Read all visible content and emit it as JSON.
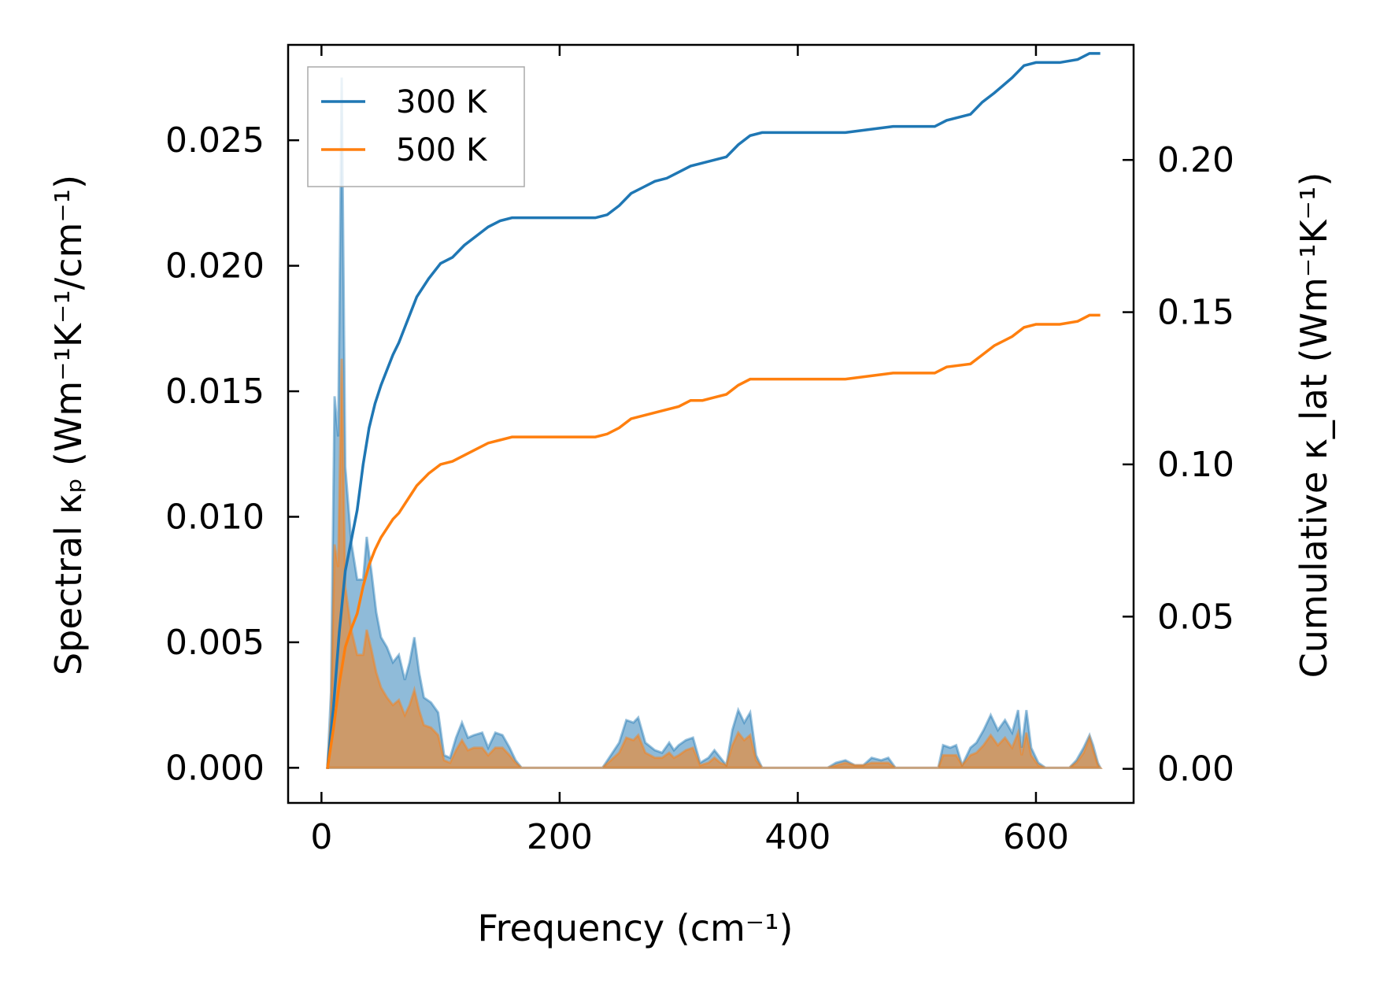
{
  "chart_data": {
    "type": "area",
    "xlabel": "Frequency (cm⁻¹)",
    "ylabel_left": "Spectral κₚ (Wm⁻¹K⁻¹/cm⁻¹)",
    "ylabel_right": "Cumulative κ_lat (Wm⁻¹K⁻¹)",
    "xlim": [
      -28,
      682
    ],
    "ylim_left": [
      -0.0014,
      0.0288
    ],
    "ylim_right": [
      -0.0112,
      0.2378
    ],
    "xticks": [
      0,
      200,
      400,
      600
    ],
    "yticks_left": [
      0.0,
      0.005,
      0.01,
      0.015,
      0.02,
      0.025
    ],
    "yticks_left_labels": [
      "0.000",
      "0.005",
      "0.010",
      "0.015",
      "0.020",
      "0.025"
    ],
    "yticks_right": [
      0.0,
      0.05,
      0.1,
      0.15,
      0.2
    ],
    "yticks_right_labels": [
      "0.00",
      "0.05",
      "0.10",
      "0.15",
      "0.20"
    ],
    "legend_position": "top-left",
    "grid": false,
    "series": [
      {
        "name": "300 K",
        "color": "#1f77b4",
        "spectral": [
          [
            5,
            0
          ],
          [
            8,
            0.003
          ],
          [
            11,
            0.0148
          ],
          [
            14,
            0.0132
          ],
          [
            17,
            0.0275
          ],
          [
            20,
            0.012
          ],
          [
            25,
            0.009
          ],
          [
            30,
            0.0075
          ],
          [
            35,
            0.0075
          ],
          [
            38,
            0.0092
          ],
          [
            42,
            0.0078
          ],
          [
            46,
            0.0062
          ],
          [
            50,
            0.0052
          ],
          [
            55,
            0.0048
          ],
          [
            60,
            0.0042
          ],
          [
            65,
            0.0045
          ],
          [
            70,
            0.0035
          ],
          [
            74,
            0.0042
          ],
          [
            78,
            0.0052
          ],
          [
            82,
            0.0038
          ],
          [
            86,
            0.0028
          ],
          [
            92,
            0.0026
          ],
          [
            98,
            0.0022
          ],
          [
            103,
            0.0005
          ],
          [
            108,
            0.0004
          ],
          [
            113,
            0.0012
          ],
          [
            118,
            0.0018
          ],
          [
            123,
            0.0012
          ],
          [
            128,
            0.0013
          ],
          [
            135,
            0.0014
          ],
          [
            140,
            0.0008
          ],
          [
            146,
            0.0014
          ],
          [
            152,
            0.0013
          ],
          [
            158,
            0.0008
          ],
          [
            163,
            0.0003
          ],
          [
            168,
            0
          ],
          [
            236,
            0
          ],
          [
            243,
            0.0005
          ],
          [
            250,
            0.001
          ],
          [
            256,
            0.0019
          ],
          [
            262,
            0.0018
          ],
          [
            266,
            0.002
          ],
          [
            272,
            0.001
          ],
          [
            280,
            0.0007
          ],
          [
            286,
            0.0006
          ],
          [
            292,
            0.001
          ],
          [
            296,
            0.0007
          ],
          [
            300,
            0.0009
          ],
          [
            306,
            0.0011
          ],
          [
            312,
            0.0012
          ],
          [
            318,
            0.0002
          ],
          [
            325,
            0.0004
          ],
          [
            330,
            0.0007
          ],
          [
            335,
            0.0004
          ],
          [
            340,
            0.0001
          ],
          [
            345,
            0.0015
          ],
          [
            350,
            0.0023
          ],
          [
            355,
            0.0018
          ],
          [
            360,
            0.0022
          ],
          [
            365,
            0.0005
          ],
          [
            370,
            0
          ],
          [
            425,
            0
          ],
          [
            432,
            0.0002
          ],
          [
            440,
            0.0003
          ],
          [
            448,
            0.0001
          ],
          [
            455,
            0.0001
          ],
          [
            462,
            0.0004
          ],
          [
            470,
            0.0003
          ],
          [
            476,
            0.0004
          ],
          [
            482,
            0
          ],
          [
            518,
            0
          ],
          [
            522,
            0.0009
          ],
          [
            528,
            0.0008
          ],
          [
            533,
            0.0009
          ],
          [
            538,
            0.0001
          ],
          [
            545,
            0.0008
          ],
          [
            550,
            0.001
          ],
          [
            556,
            0.0015
          ],
          [
            562,
            0.0021
          ],
          [
            568,
            0.0015
          ],
          [
            574,
            0.0019
          ],
          [
            580,
            0.0014
          ],
          [
            585,
            0.0023
          ],
          [
            588,
            0.0008
          ],
          [
            592,
            0.0023
          ],
          [
            596,
            0.0008
          ],
          [
            602,
            0.0002
          ],
          [
            608,
            0
          ],
          [
            628,
            0
          ],
          [
            634,
            0.0003
          ],
          [
            640,
            0.0008
          ],
          [
            645,
            0.0013
          ],
          [
            648,
            0.0009
          ],
          [
            652,
            0.0002
          ],
          [
            654,
            0
          ]
        ],
        "cumulative": [
          [
            5,
            0
          ],
          [
            10,
            0.02
          ],
          [
            15,
            0.045
          ],
          [
            20,
            0.065
          ],
          [
            25,
            0.075
          ],
          [
            30,
            0.085
          ],
          [
            35,
            0.1
          ],
          [
            40,
            0.112
          ],
          [
            45,
            0.12
          ],
          [
            50,
            0.126
          ],
          [
            55,
            0.131
          ],
          [
            60,
            0.136
          ],
          [
            65,
            0.14
          ],
          [
            70,
            0.145
          ],
          [
            75,
            0.15
          ],
          [
            80,
            0.155
          ],
          [
            90,
            0.161
          ],
          [
            100,
            0.166
          ],
          [
            110,
            0.168
          ],
          [
            120,
            0.172
          ],
          [
            130,
            0.175
          ],
          [
            140,
            0.178
          ],
          [
            150,
            0.18
          ],
          [
            160,
            0.181
          ],
          [
            200,
            0.181
          ],
          [
            230,
            0.181
          ],
          [
            240,
            0.182
          ],
          [
            250,
            0.185
          ],
          [
            260,
            0.189
          ],
          [
            270,
            0.191
          ],
          [
            280,
            0.193
          ],
          [
            290,
            0.194
          ],
          [
            300,
            0.196
          ],
          [
            310,
            0.198
          ],
          [
            320,
            0.199
          ],
          [
            330,
            0.2
          ],
          [
            340,
            0.201
          ],
          [
            350,
            0.205
          ],
          [
            360,
            0.208
          ],
          [
            370,
            0.209
          ],
          [
            420,
            0.209
          ],
          [
            440,
            0.209
          ],
          [
            460,
            0.21
          ],
          [
            480,
            0.211
          ],
          [
            515,
            0.211
          ],
          [
            525,
            0.213
          ],
          [
            545,
            0.215
          ],
          [
            555,
            0.219
          ],
          [
            565,
            0.222
          ],
          [
            580,
            0.227
          ],
          [
            590,
            0.231
          ],
          [
            600,
            0.232
          ],
          [
            620,
            0.232
          ],
          [
            635,
            0.233
          ],
          [
            645,
            0.235
          ],
          [
            654,
            0.235
          ]
        ]
      },
      {
        "name": "500 K",
        "color": "#ff7f0e",
        "spectral": [
          [
            5,
            0
          ],
          [
            8,
            0.002
          ],
          [
            11,
            0.0089
          ],
          [
            14,
            0.008
          ],
          [
            17,
            0.0163
          ],
          [
            20,
            0.0072
          ],
          [
            25,
            0.0055
          ],
          [
            30,
            0.0045
          ],
          [
            35,
            0.0045
          ],
          [
            38,
            0.0055
          ],
          [
            42,
            0.0047
          ],
          [
            46,
            0.0038
          ],
          [
            50,
            0.0032
          ],
          [
            55,
            0.0028
          ],
          [
            60,
            0.0025
          ],
          [
            65,
            0.0027
          ],
          [
            70,
            0.0021
          ],
          [
            74,
            0.0025
          ],
          [
            78,
            0.0031
          ],
          [
            82,
            0.0023
          ],
          [
            86,
            0.0017
          ],
          [
            92,
            0.0016
          ],
          [
            98,
            0.0013
          ],
          [
            103,
            0.0003
          ],
          [
            108,
            0.0002
          ],
          [
            113,
            0.0007
          ],
          [
            118,
            0.0011
          ],
          [
            123,
            0.0007
          ],
          [
            128,
            0.0008
          ],
          [
            135,
            0.0008
          ],
          [
            140,
            0.0005
          ],
          [
            146,
            0.0008
          ],
          [
            152,
            0.0008
          ],
          [
            158,
            0.0005
          ],
          [
            163,
            0.0002
          ],
          [
            168,
            0
          ],
          [
            236,
            0
          ],
          [
            243,
            0.0003
          ],
          [
            250,
            0.0006
          ],
          [
            256,
            0.0012
          ],
          [
            262,
            0.0011
          ],
          [
            266,
            0.0013
          ],
          [
            272,
            0.0006
          ],
          [
            280,
            0.0004
          ],
          [
            286,
            0.0004
          ],
          [
            292,
            0.0006
          ],
          [
            296,
            0.0004
          ],
          [
            300,
            0.0005
          ],
          [
            306,
            0.0007
          ],
          [
            312,
            0.0008
          ],
          [
            318,
            0.0001
          ],
          [
            325,
            0.0002
          ],
          [
            330,
            0.0004
          ],
          [
            335,
            0.0002
          ],
          [
            340,
            0.0001
          ],
          [
            345,
            0.0009
          ],
          [
            350,
            0.0014
          ],
          [
            355,
            0.0011
          ],
          [
            360,
            0.0013
          ],
          [
            365,
            0.0003
          ],
          [
            370,
            0
          ],
          [
            425,
            0
          ],
          [
            432,
            0.0001
          ],
          [
            440,
            0.0002
          ],
          [
            448,
            0.0001
          ],
          [
            455,
            0.0001
          ],
          [
            462,
            0.0002
          ],
          [
            470,
            0.0002
          ],
          [
            476,
            0.0002
          ],
          [
            482,
            0
          ],
          [
            518,
            0
          ],
          [
            522,
            0.0005
          ],
          [
            528,
            0.0005
          ],
          [
            533,
            0.0005
          ],
          [
            538,
            0.0001
          ],
          [
            545,
            0.0005
          ],
          [
            550,
            0.0006
          ],
          [
            556,
            0.0009
          ],
          [
            562,
            0.0013
          ],
          [
            568,
            0.0009
          ],
          [
            574,
            0.0012
          ],
          [
            580,
            0.0008
          ],
          [
            585,
            0.0014
          ],
          [
            588,
            0.0005
          ],
          [
            592,
            0.0014
          ],
          [
            596,
            0.0005
          ],
          [
            602,
            0.0001
          ],
          [
            608,
            0
          ],
          [
            628,
            0
          ],
          [
            634,
            0.0002
          ],
          [
            640,
            0.0006
          ],
          [
            645,
            0.0012
          ],
          [
            648,
            0.0007
          ],
          [
            652,
            0.0001
          ],
          [
            654,
            0
          ]
        ],
        "cumulative": [
          [
            5,
            0
          ],
          [
            10,
            0.013
          ],
          [
            15,
            0.028
          ],
          [
            20,
            0.04
          ],
          [
            25,
            0.046
          ],
          [
            30,
            0.051
          ],
          [
            35,
            0.06
          ],
          [
            40,
            0.067
          ],
          [
            45,
            0.072
          ],
          [
            50,
            0.076
          ],
          [
            55,
            0.079
          ],
          [
            60,
            0.082
          ],
          [
            65,
            0.084
          ],
          [
            70,
            0.087
          ],
          [
            75,
            0.09
          ],
          [
            80,
            0.093
          ],
          [
            90,
            0.097
          ],
          [
            100,
            0.1
          ],
          [
            110,
            0.101
          ],
          [
            120,
            0.103
          ],
          [
            130,
            0.105
          ],
          [
            140,
            0.107
          ],
          [
            150,
            0.108
          ],
          [
            160,
            0.109
          ],
          [
            230,
            0.109
          ],
          [
            240,
            0.11
          ],
          [
            250,
            0.112
          ],
          [
            260,
            0.115
          ],
          [
            270,
            0.116
          ],
          [
            280,
            0.117
          ],
          [
            290,
            0.118
          ],
          [
            300,
            0.119
          ],
          [
            310,
            0.121
          ],
          [
            320,
            0.121
          ],
          [
            330,
            0.122
          ],
          [
            340,
            0.123
          ],
          [
            350,
            0.126
          ],
          [
            360,
            0.128
          ],
          [
            370,
            0.128
          ],
          [
            420,
            0.128
          ],
          [
            440,
            0.128
          ],
          [
            460,
            0.129
          ],
          [
            480,
            0.13
          ],
          [
            515,
            0.13
          ],
          [
            525,
            0.132
          ],
          [
            545,
            0.133
          ],
          [
            555,
            0.136
          ],
          [
            565,
            0.139
          ],
          [
            580,
            0.142
          ],
          [
            590,
            0.145
          ],
          [
            600,
            0.146
          ],
          [
            620,
            0.146
          ],
          [
            635,
            0.147
          ],
          [
            645,
            0.149
          ],
          [
            654,
            0.149
          ]
        ]
      }
    ]
  }
}
